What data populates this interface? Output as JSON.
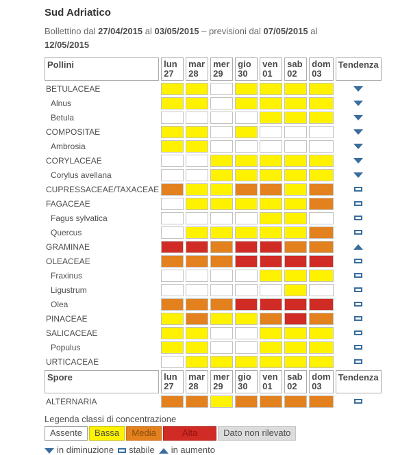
{
  "title": "Sud Adriatico",
  "subtitle": {
    "part1": "Bollettino dal ",
    "date1": "27/04/2015",
    "part2": " al ",
    "date2": "03/05/2015",
    "part3": " – previsioni dal ",
    "date3": "07/05/2015",
    "part4": " al",
    "date4": "12/05/2015"
  },
  "columns": {
    "pollini_label": "Pollini",
    "spore_label": "Spore",
    "tendenza_label": "Tendenza",
    "days": [
      {
        "name": "lun",
        "num": "27"
      },
      {
        "name": "mar",
        "num": "28"
      },
      {
        "name": "mer",
        "num": "29"
      },
      {
        "name": "gio",
        "num": "30"
      },
      {
        "name": "ven",
        "num": "01"
      },
      {
        "name": "sab",
        "num": "02"
      },
      {
        "name": "dom",
        "num": "03"
      }
    ]
  },
  "colors": {
    "assente": "#FFFFFF",
    "bassa": "#FFF200",
    "media": "#E2811E",
    "alta": "#D02B24",
    "non_rilevato": "#DCDCDC",
    "trend_blue": "#3A6D9E",
    "cell_border": "#C2C2C2"
  },
  "pollini_rows": [
    {
      "label": "BETULACEAE",
      "indent": false,
      "cells": [
        "bassa",
        "bassa",
        "assente",
        "bassa",
        "bassa",
        "bassa",
        "bassa"
      ],
      "trend": "down"
    },
    {
      "label": "Alnus",
      "indent": true,
      "cells": [
        "bassa",
        "bassa",
        "assente",
        "bassa",
        "bassa",
        "bassa",
        "bassa"
      ],
      "trend": "down"
    },
    {
      "label": "Betula",
      "indent": true,
      "cells": [
        "assente",
        "assente",
        "assente",
        "assente",
        "bassa",
        "bassa",
        "bassa"
      ],
      "trend": "down"
    },
    {
      "label": "COMPOSITAE",
      "indent": false,
      "cells": [
        "bassa",
        "bassa",
        "assente",
        "bassa",
        "assente",
        "assente",
        "assente"
      ],
      "trend": "down"
    },
    {
      "label": "Ambrosia",
      "indent": true,
      "cells": [
        "bassa",
        "bassa",
        "assente",
        "assente",
        "assente",
        "assente",
        "assente"
      ],
      "trend": "down"
    },
    {
      "label": "CORYLACEAE",
      "indent": false,
      "cells": [
        "assente",
        "assente",
        "bassa",
        "bassa",
        "bassa",
        "bassa",
        "bassa"
      ],
      "trend": "down"
    },
    {
      "label": "Corylus avellana",
      "indent": true,
      "cells": [
        "assente",
        "assente",
        "bassa",
        "bassa",
        "bassa",
        "bassa",
        "bassa"
      ],
      "trend": "down"
    },
    {
      "label": "CUPRESSACEAE/TAXACEAE",
      "indent": false,
      "cells": [
        "media",
        "bassa",
        "bassa",
        "media",
        "media",
        "bassa",
        "media"
      ],
      "trend": "stable"
    },
    {
      "label": "FAGACEAE",
      "indent": false,
      "cells": [
        "assente",
        "bassa",
        "bassa",
        "bassa",
        "bassa",
        "bassa",
        "media"
      ],
      "trend": "stable"
    },
    {
      "label": "Fagus sylvatica",
      "indent": true,
      "cells": [
        "assente",
        "assente",
        "assente",
        "assente",
        "bassa",
        "bassa",
        "assente"
      ],
      "trend": "stable"
    },
    {
      "label": "Quercus",
      "indent": true,
      "cells": [
        "assente",
        "bassa",
        "bassa",
        "bassa",
        "bassa",
        "bassa",
        "media"
      ],
      "trend": "stable"
    },
    {
      "label": "GRAMINAE",
      "indent": false,
      "cells": [
        "alta",
        "alta",
        "media",
        "alta",
        "alta",
        "media",
        "media"
      ],
      "trend": "up"
    },
    {
      "label": "OLEACEAE",
      "indent": false,
      "cells": [
        "media",
        "media",
        "media",
        "alta",
        "alta",
        "alta",
        "alta"
      ],
      "trend": "stable"
    },
    {
      "label": "Fraxinus",
      "indent": true,
      "cells": [
        "assente",
        "assente",
        "assente",
        "assente",
        "bassa",
        "bassa",
        "bassa"
      ],
      "trend": "stable"
    },
    {
      "label": "Ligustrum",
      "indent": true,
      "cells": [
        "assente",
        "assente",
        "assente",
        "assente",
        "assente",
        "bassa",
        "assente"
      ],
      "trend": "stable"
    },
    {
      "label": "Olea",
      "indent": true,
      "cells": [
        "media",
        "media",
        "media",
        "alta",
        "alta",
        "alta",
        "alta"
      ],
      "trend": "stable"
    },
    {
      "label": "PINACEAE",
      "indent": false,
      "cells": [
        "bassa",
        "media",
        "bassa",
        "bassa",
        "media",
        "alta",
        "media"
      ],
      "trend": "stable"
    },
    {
      "label": "SALICACEAE",
      "indent": false,
      "cells": [
        "bassa",
        "bassa",
        "assente",
        "assente",
        "bassa",
        "bassa",
        "bassa"
      ],
      "trend": "stable"
    },
    {
      "label": "Populus",
      "indent": true,
      "cells": [
        "bassa",
        "bassa",
        "assente",
        "assente",
        "bassa",
        "bassa",
        "bassa"
      ],
      "trend": "stable"
    },
    {
      "label": "URTICACEAE",
      "indent": false,
      "cells": [
        "assente",
        "bassa",
        "bassa",
        "bassa",
        "bassa",
        "bassa",
        "bassa"
      ],
      "trend": "stable"
    }
  ],
  "spore_rows": [
    {
      "label": "ALTERNARIA",
      "indent": false,
      "cells": [
        "media",
        "media",
        "bassa",
        "media",
        "media",
        "media",
        "media"
      ],
      "trend": "stable"
    }
  ],
  "legend": {
    "title": "Legenda classi di concentrazione",
    "classes": [
      {
        "key": "assente",
        "label": "Assente"
      },
      {
        "key": "bassa",
        "label": "Bassa"
      },
      {
        "key": "media",
        "label": "Media"
      },
      {
        "key": "alta",
        "label": "Alta"
      },
      {
        "key": "non_rilevato",
        "label": "Dato non rilevato"
      }
    ],
    "trends": [
      {
        "icon": "down",
        "label": "in diminuzione"
      },
      {
        "icon": "stable",
        "label": "stabile"
      },
      {
        "icon": "up",
        "label": "in aumento"
      }
    ]
  }
}
